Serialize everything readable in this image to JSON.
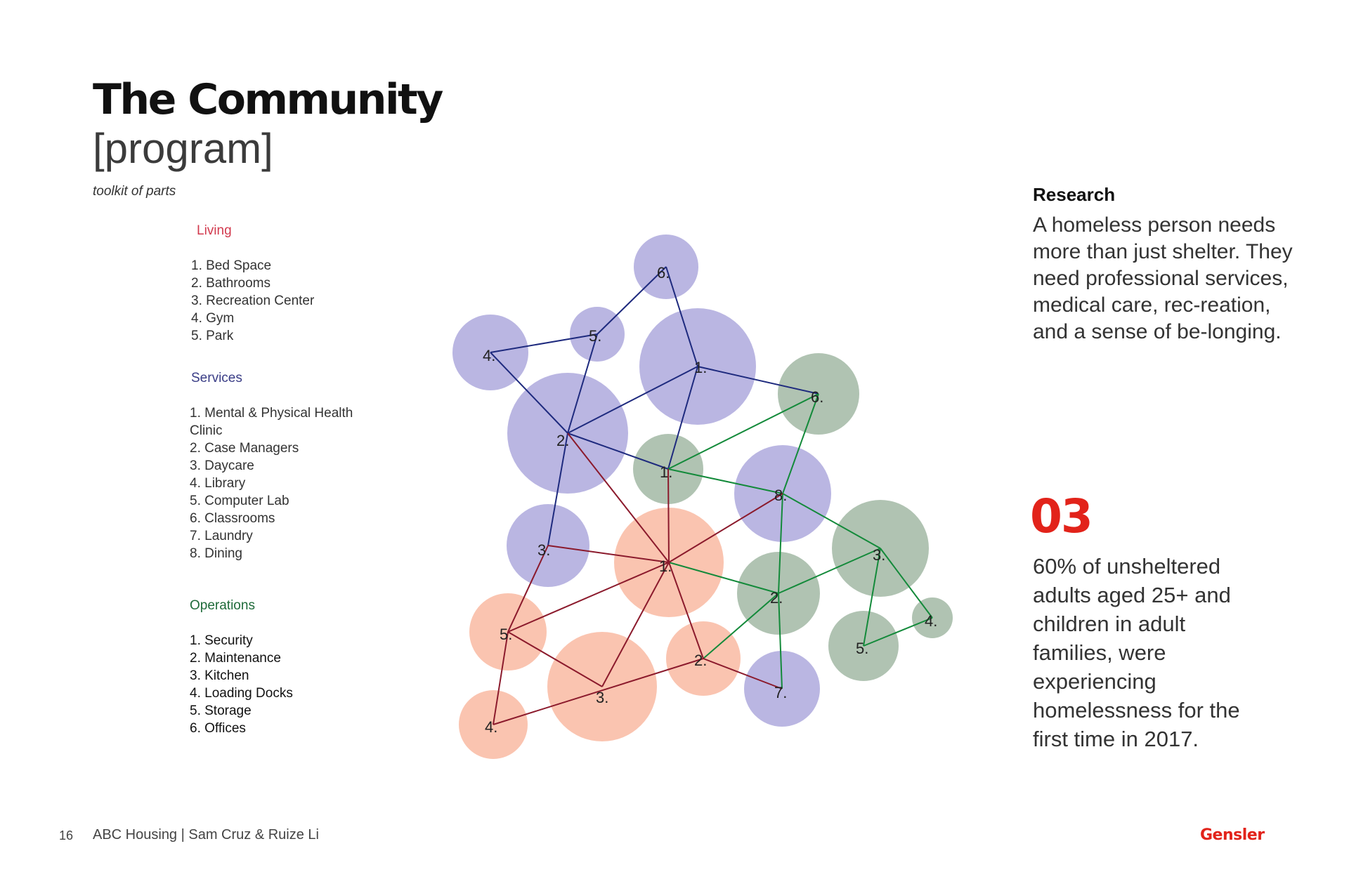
{
  "header": {
    "title": "The Community",
    "subtitle": "[program]",
    "tagline": "toolkit of parts"
  },
  "colors": {
    "living": "#f8a88a",
    "services": "#9a93d4",
    "operations": "#8ba78e",
    "living_line": "#8b1a2c",
    "services_line": "#1e2a7e",
    "operations_line": "#138a3a",
    "accent": "#e2231a"
  },
  "legend": {
    "living": {
      "heading": "Living",
      "items": [
        "1. Bed Space",
        "2. Bathrooms",
        "3. Recreation Center",
        "4. Gym",
        "5. Park"
      ]
    },
    "services": {
      "heading": "Services",
      "items": [
        "1. Mental & Physical Health",
        "Clinic",
        "2. Case Managers",
        "3. Daycare",
        "4. Library",
        "5. Computer Lab",
        "6. Classrooms",
        "7. Laundry",
        "8. Dining"
      ]
    },
    "operations": {
      "heading": "Operations",
      "items": [
        "1. Security",
        "2. Maintenance",
        "3. Kitchen",
        "4. Loading Docks",
        "5. Storage",
        "6. Offices"
      ]
    }
  },
  "diagram": {
    "nodes": [
      {
        "id": "S1",
        "group": "services",
        "label": "1."
      },
      {
        "id": "S2",
        "group": "services",
        "label": "2."
      },
      {
        "id": "S3",
        "group": "services",
        "label": "3."
      },
      {
        "id": "S4",
        "group": "services",
        "label": "4."
      },
      {
        "id": "S5",
        "group": "services",
        "label": "5."
      },
      {
        "id": "S6",
        "group": "services",
        "label": "6."
      },
      {
        "id": "S7",
        "group": "services",
        "label": "7."
      },
      {
        "id": "S8",
        "group": "services",
        "label": "8."
      },
      {
        "id": "O1",
        "group": "operations",
        "label": "1."
      },
      {
        "id": "O2",
        "group": "operations",
        "label": "2."
      },
      {
        "id": "O3",
        "group": "operations",
        "label": "3."
      },
      {
        "id": "O4",
        "group": "operations",
        "label": "4."
      },
      {
        "id": "O5",
        "group": "operations",
        "label": "5."
      },
      {
        "id": "O6",
        "group": "operations",
        "label": "6."
      },
      {
        "id": "L1",
        "group": "living",
        "label": "1."
      },
      {
        "id": "L2",
        "group": "living",
        "label": "2."
      },
      {
        "id": "L3",
        "group": "living",
        "label": "3."
      },
      {
        "id": "L4",
        "group": "living",
        "label": "4."
      },
      {
        "id": "L5",
        "group": "living",
        "label": "5."
      }
    ],
    "edges": [
      {
        "from": "S6",
        "to": "S5",
        "group": "services"
      },
      {
        "from": "S5",
        "to": "S4",
        "group": "services"
      },
      {
        "from": "S5",
        "to": "S2",
        "group": "services"
      },
      {
        "from": "S4",
        "to": "S2",
        "group": "services"
      },
      {
        "from": "S1",
        "to": "S2",
        "group": "services"
      },
      {
        "from": "S1",
        "to": "S6",
        "group": "services"
      },
      {
        "from": "S1",
        "to": "O6",
        "group": "services"
      },
      {
        "from": "S1",
        "to": "O1",
        "group": "services"
      },
      {
        "from": "S2",
        "to": "O1",
        "group": "services"
      },
      {
        "from": "S2",
        "to": "S3",
        "group": "services"
      },
      {
        "from": "O1",
        "to": "O6",
        "group": "operations"
      },
      {
        "from": "O1",
        "to": "S8",
        "group": "operations"
      },
      {
        "from": "O6",
        "to": "S8",
        "group": "operations"
      },
      {
        "from": "S8",
        "to": "O3",
        "group": "operations"
      },
      {
        "from": "S8",
        "to": "O2",
        "group": "operations"
      },
      {
        "from": "O2",
        "to": "O3",
        "group": "operations"
      },
      {
        "from": "O2",
        "to": "L1",
        "group": "operations"
      },
      {
        "from": "O2",
        "to": "L2",
        "group": "operations"
      },
      {
        "from": "O2",
        "to": "S7",
        "group": "operations"
      },
      {
        "from": "O3",
        "to": "O4",
        "group": "operations"
      },
      {
        "from": "O3",
        "to": "O5",
        "group": "operations"
      },
      {
        "from": "O4",
        "to": "O5",
        "group": "operations"
      },
      {
        "from": "L1",
        "to": "O1",
        "group": "living"
      },
      {
        "from": "L1",
        "to": "S2",
        "group": "living"
      },
      {
        "from": "L1",
        "to": "S3",
        "group": "living"
      },
      {
        "from": "L1",
        "to": "S8",
        "group": "living"
      },
      {
        "from": "L1",
        "to": "L5",
        "group": "living"
      },
      {
        "from": "L1",
        "to": "L3",
        "group": "living"
      },
      {
        "from": "L1",
        "to": "L2",
        "group": "living"
      },
      {
        "from": "S3",
        "to": "L5",
        "group": "living"
      },
      {
        "from": "L5",
        "to": "L3",
        "group": "living"
      },
      {
        "from": "L5",
        "to": "L4",
        "group": "living"
      },
      {
        "from": "L4",
        "to": "L2",
        "group": "living"
      },
      {
        "from": "L2",
        "to": "S7",
        "group": "living"
      }
    ]
  },
  "research": {
    "heading": "Research",
    "body": "A homeless person needs more than just shelter. They need professional services, medical care, rec-reation, and a sense of be-longing."
  },
  "stat": {
    "number": "03",
    "body": "60% of unsheltered adults aged 25+ and children in adult families, were experiencing homelessness for the first time in 2017."
  },
  "footer": {
    "page_number": "16",
    "credit": "ABC Housing | Sam Cruz & Ruize Li",
    "logo": "Gensler"
  }
}
